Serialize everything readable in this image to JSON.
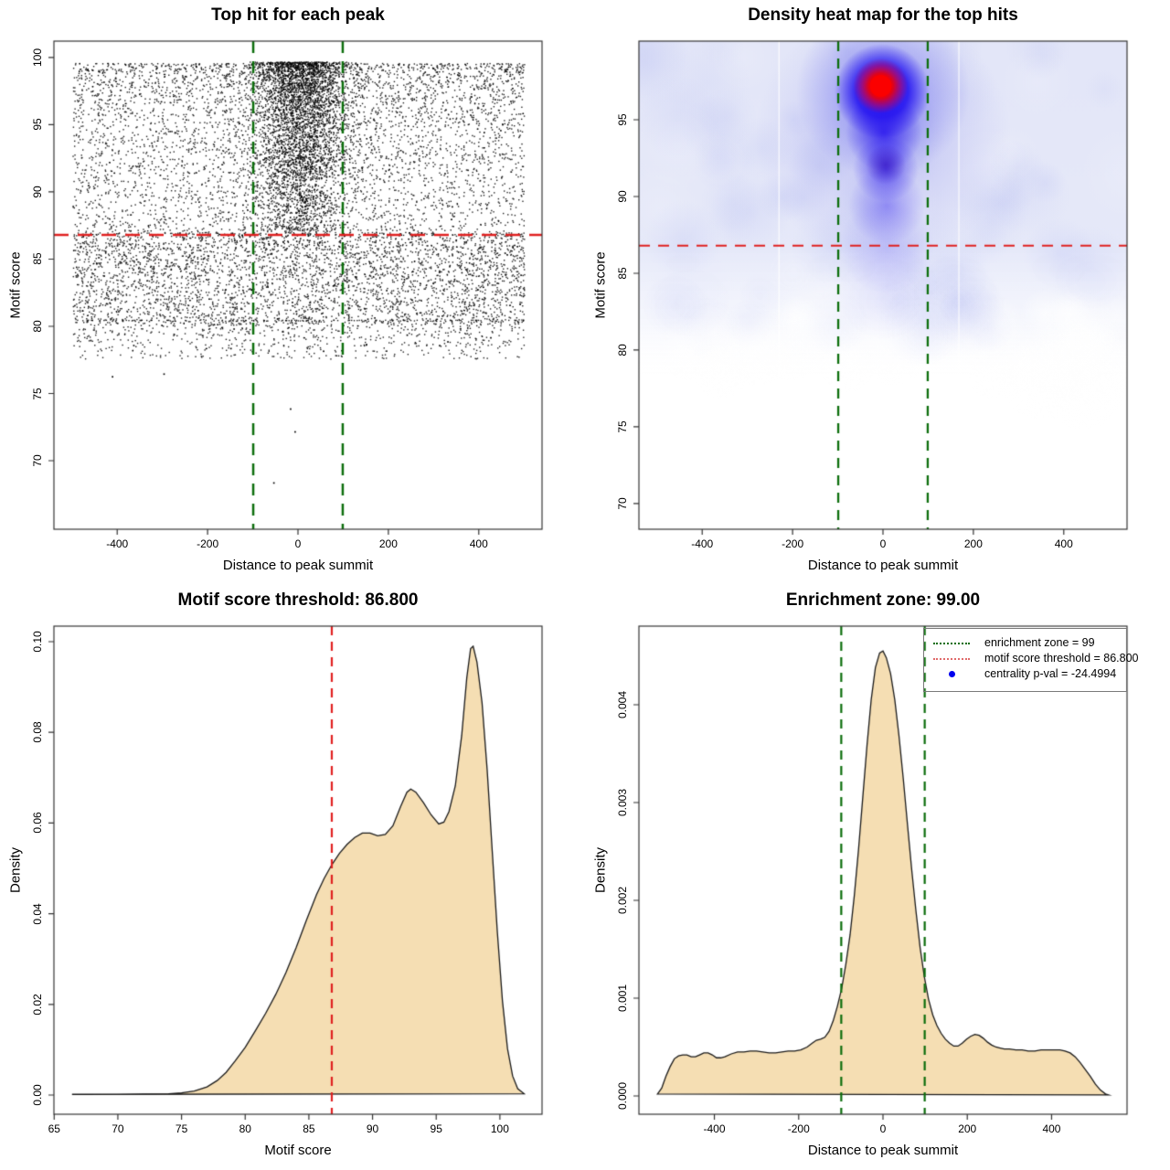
{
  "page": {
    "background": "#ffffff"
  },
  "colors": {
    "box_stroke": "#333333",
    "text": "#000000",
    "red_dashed_line": "#e02020",
    "green_dashed_line": "#0c6e0c",
    "density_fill_wheat": "#f5deb3",
    "density_curve_stroke": "#1a1a1a",
    "scatter_point": "#000000",
    "legend_border": "#7a7a7a",
    "legend_blue_point": "#0000ee",
    "heat_core_red": "#ff0000",
    "heat_strong_blue": "#2212f0",
    "heat_light_blue": "#e3e6f8"
  },
  "panels": [
    {
      "title": "Top hit for each peak",
      "xlabel": "Distance to peak summit",
      "ylabel": "Motif score",
      "x_tick_labels": [
        "-400",
        "-200",
        "0",
        "200",
        "400"
      ],
      "y_tick_labels": [
        "70",
        "75",
        "80",
        "85",
        "90",
        "95",
        "100"
      ]
    },
    {
      "title": "Density heat map for the top hits",
      "xlabel": "Distance to peak summit",
      "ylabel": "Motif score",
      "x_tick_labels": [
        "-400",
        "-200",
        "0",
        "200",
        "400"
      ],
      "y_tick_labels": [
        "70",
        "75",
        "80",
        "85",
        "90",
        "95"
      ]
    },
    {
      "title": "Motif score threshold: 86.800",
      "xlabel": "Motif score",
      "ylabel": "Density",
      "x_tick_labels": [
        "65",
        "70",
        "75",
        "80",
        "85",
        "90",
        "95",
        "100"
      ],
      "y_tick_labels": [
        "0.00",
        "0.02",
        "0.04",
        "0.06",
        "0.08",
        "0.10"
      ]
    },
    {
      "title": "Enrichment zone: 99.00",
      "xlabel": "Distance to peak summit",
      "ylabel": "Density",
      "x_tick_labels": [
        "-400",
        "-200",
        "0",
        "200",
        "400"
      ],
      "y_tick_labels": [
        "0.000",
        "0.001",
        "0.002",
        "0.003",
        "0.004"
      ],
      "legend": {
        "items": [
          {
            "label": "enrichment zone = 99",
            "swatch": "green-dotted-line"
          },
          {
            "label": "motif score threshold = 86.800",
            "swatch": "red-dotted-line"
          },
          {
            "label": "centrality p-val = -24.4994",
            "swatch": "blue-point"
          }
        ]
      }
    }
  ],
  "chart_data": [
    {
      "type": "scatter",
      "title": "Top hit for each peak",
      "xlabel": "Distance to peak summit",
      "ylabel": "Motif score",
      "xlim": [
        -540,
        540
      ],
      "ylim": [
        64.9,
        101.22
      ],
      "x_ticks": [
        -400,
        -200,
        0,
        200,
        400
      ],
      "y_ticks": [
        70,
        75,
        80,
        85,
        90,
        95,
        100
      ],
      "motif_score_threshold": 86.8,
      "enrichment_zone_halfwidth": 99,
      "generator": {
        "seed": 42,
        "n_background": 8800,
        "background_x_range": [
          -499,
          500
        ],
        "background_y_branches": [
          {
            "weight": 0.5,
            "base": 99.6,
            "span": 12.6,
            "power": 1.35
          },
          {
            "weight": 0.4,
            "base": 87.0,
            "span": 6.5,
            "power": 1.15
          },
          {
            "weight": 0.1,
            "base": 80.5,
            "span": 2.9,
            "power": 2.0
          }
        ],
        "n_cluster": 3600,
        "cluster_x_mean": 4,
        "cluster_x_sd": 52,
        "cluster_x_clip": [
          -180,
          190
        ],
        "cluster_y_branches": [
          {
            "weight": 0.54,
            "base": 99.7,
            "span": 4.6,
            "power": 1.5
          },
          {
            "weight": 0.29,
            "base": 95.1,
            "span": 4.1,
            "power": 1.0
          },
          {
            "weight": 0.17,
            "base": 91.0,
            "span": 3.9,
            "power": 1.0
          }
        ]
      },
      "outlier_points": [
        [
          -55,
          68.4
        ],
        [
          -8,
          72.2
        ],
        [
          -18,
          73.9
        ],
        [
          -412,
          76.3
        ],
        [
          -298,
          76.5
        ],
        [
          55,
          78.2
        ],
        [
          330,
          78.9
        ],
        [
          -150,
          78.4
        ],
        [
          150,
          78.7
        ],
        [
          425,
          79.2
        ],
        [
          -460,
          79.0
        ],
        [
          240,
          79.4
        ]
      ]
    },
    {
      "type": "heatmap",
      "title": "Density heat map for the top hits",
      "xlabel": "Distance to peak summit",
      "ylabel": "Motif score",
      "xlim": [
        -540,
        540
      ],
      "ylim": [
        68.33,
        100.12
      ],
      "x_ticks": [
        -400,
        -200,
        0,
        200,
        400
      ],
      "y_ticks": [
        70,
        75,
        80,
        85,
        90,
        95
      ],
      "motif_score_threshold": 86.8,
      "enrichment_zone_halfwidth": 99,
      "colormap": [
        "#ffffff",
        "#e3e6f8",
        "#8890e8",
        "#2212f0",
        "#ff0000"
      ],
      "density_features": {
        "hotspot_xy": [
          -5,
          97.2
        ],
        "main_cluster_x_range": [
          -85,
          85
        ],
        "main_cluster_y_range": [
          89.5,
          99.5
        ],
        "background_band_y_range": [
          79.5,
          100.1
        ],
        "white_streak_x": [
          -230,
          168
        ],
        "noise_seed": 7
      }
    },
    {
      "type": "area",
      "title": "Motif score threshold: 86.800",
      "xlabel": "Motif score",
      "ylabel": "Density",
      "xlim": [
        64.98,
        103.31
      ],
      "ylim": [
        -0.00423,
        0.10343
      ],
      "x_ticks": [
        65,
        70,
        75,
        80,
        85,
        90,
        95,
        100
      ],
      "y_ticks": [
        0.0,
        0.02,
        0.04,
        0.06,
        0.08,
        0.1
      ],
      "threshold_line_x": 86.8,
      "curve": [
        [
          66.4,
          0.00015
        ],
        [
          68,
          0.0002
        ],
        [
          70,
          0.0002
        ],
        [
          72,
          0.00022
        ],
        [
          74,
          0.0003
        ],
        [
          75,
          0.0005
        ],
        [
          76,
          0.0009
        ],
        [
          77,
          0.0018
        ],
        [
          77.8,
          0.0032
        ],
        [
          78.5,
          0.005
        ],
        [
          79.2,
          0.0075
        ],
        [
          80,
          0.0105
        ],
        [
          80.8,
          0.0142
        ],
        [
          81.6,
          0.018
        ],
        [
          82.4,
          0.0222
        ],
        [
          83.2,
          0.027
        ],
        [
          84,
          0.0325
        ],
        [
          84.8,
          0.0385
        ],
        [
          85.6,
          0.0442
        ],
        [
          86.2,
          0.0478
        ],
        [
          86.8,
          0.0508
        ],
        [
          87.4,
          0.0533
        ],
        [
          88,
          0.0553
        ],
        [
          88.6,
          0.0568
        ],
        [
          89.2,
          0.0578
        ],
        [
          89.8,
          0.0578
        ],
        [
          90.4,
          0.0572
        ],
        [
          91,
          0.0575
        ],
        [
          91.6,
          0.0594
        ],
        [
          92.2,
          0.0636
        ],
        [
          92.7,
          0.0668
        ],
        [
          93,
          0.0675
        ],
        [
          93.4,
          0.0668
        ],
        [
          94,
          0.0645
        ],
        [
          94.6,
          0.0618
        ],
        [
          95.2,
          0.0598
        ],
        [
          95.6,
          0.0602
        ],
        [
          96,
          0.0625
        ],
        [
          96.5,
          0.0682
        ],
        [
          97,
          0.0793
        ],
        [
          97.4,
          0.092
        ],
        [
          97.7,
          0.0985
        ],
        [
          97.9,
          0.099
        ],
        [
          98.2,
          0.0955
        ],
        [
          98.6,
          0.0865
        ],
        [
          99,
          0.0718
        ],
        [
          99.4,
          0.0538
        ],
        [
          99.8,
          0.036
        ],
        [
          100.2,
          0.0208
        ],
        [
          100.6,
          0.0102
        ],
        [
          101,
          0.0042
        ],
        [
          101.4,
          0.0014
        ],
        [
          101.9,
          0.0003
        ]
      ]
    },
    {
      "type": "area",
      "title": "Enrichment zone: 99.00",
      "xlabel": "Distance to peak summit",
      "ylabel": "Density",
      "xlim": [
        -579,
        579
      ],
      "ylim": [
        -0.000187,
        0.004804
      ],
      "x_ticks": [
        -400,
        -200,
        0,
        200,
        400
      ],
      "y_ticks": [
        0.0,
        0.001,
        0.002,
        0.003,
        0.004
      ],
      "enrichment_zone_halfwidth": 99,
      "motif_score_threshold": 86.8,
      "centrality_p_val": -24.4994,
      "curve": [
        [
          -535,
          2e-05
        ],
        [
          -525,
          8e-05
        ],
        [
          -515,
          0.0002
        ],
        [
          -505,
          0.0003
        ],
        [
          -495,
          0.00038
        ],
        [
          -485,
          0.00041
        ],
        [
          -475,
          0.00042
        ],
        [
          -465,
          0.00042
        ],
        [
          -455,
          0.0004
        ],
        [
          -445,
          0.0004
        ],
        [
          -435,
          0.00042
        ],
        [
          -425,
          0.00044
        ],
        [
          -415,
          0.00044
        ],
        [
          -405,
          0.00042
        ],
        [
          -395,
          0.00039
        ],
        [
          -385,
          0.00039
        ],
        [
          -375,
          0.0004
        ],
        [
          -360,
          0.00043
        ],
        [
          -345,
          0.00045
        ],
        [
          -330,
          0.00045
        ],
        [
          -315,
          0.00046
        ],
        [
          -300,
          0.00046
        ],
        [
          -285,
          0.00045
        ],
        [
          -270,
          0.00044
        ],
        [
          -255,
          0.00044
        ],
        [
          -240,
          0.00045
        ],
        [
          -225,
          0.00046
        ],
        [
          -210,
          0.00046
        ],
        [
          -195,
          0.00047
        ],
        [
          -180,
          0.0005
        ],
        [
          -168,
          0.00054
        ],
        [
          -158,
          0.00057
        ],
        [
          -148,
          0.00058
        ],
        [
          -138,
          0.0006
        ],
        [
          -128,
          0.00066
        ],
        [
          -118,
          0.00077
        ],
        [
          -108,
          0.00092
        ],
        [
          -98,
          0.0011
        ],
        [
          -88,
          0.00135
        ],
        [
          -78,
          0.00165
        ],
        [
          -68,
          0.00205
        ],
        [
          -58,
          0.00252
        ],
        [
          -48,
          0.00305
        ],
        [
          -38,
          0.00358
        ],
        [
          -28,
          0.00405
        ],
        [
          -18,
          0.00438
        ],
        [
          -8,
          0.00453
        ],
        [
          0,
          0.00455
        ],
        [
          8,
          0.00448
        ],
        [
          18,
          0.00432
        ],
        [
          28,
          0.00405
        ],
        [
          38,
          0.00368
        ],
        [
          48,
          0.00325
        ],
        [
          58,
          0.00278
        ],
        [
          68,
          0.00232
        ],
        [
          78,
          0.0019
        ],
        [
          88,
          0.00152
        ],
        [
          98,
          0.00122
        ],
        [
          108,
          0.00099
        ],
        [
          118,
          0.00083
        ],
        [
          128,
          0.00072
        ],
        [
          138,
          0.00064
        ],
        [
          148,
          0.00058
        ],
        [
          158,
          0.00054
        ],
        [
          168,
          0.00051
        ],
        [
          178,
          0.00051
        ],
        [
          188,
          0.00054
        ],
        [
          198,
          0.00058
        ],
        [
          208,
          0.00061
        ],
        [
          218,
          0.00063
        ],
        [
          228,
          0.00062
        ],
        [
          238,
          0.00059
        ],
        [
          248,
          0.00055
        ],
        [
          258,
          0.00052
        ],
        [
          268,
          0.0005
        ],
        [
          278,
          0.00049
        ],
        [
          288,
          0.00048
        ],
        [
          300,
          0.00048
        ],
        [
          315,
          0.00047
        ],
        [
          330,
          0.00047
        ],
        [
          345,
          0.00046
        ],
        [
          360,
          0.00046
        ],
        [
          375,
          0.00047
        ],
        [
          390,
          0.00047
        ],
        [
          405,
          0.00047
        ],
        [
          420,
          0.00047
        ],
        [
          432,
          0.00046
        ],
        [
          444,
          0.00044
        ],
        [
          456,
          0.0004
        ],
        [
          468,
          0.00034
        ],
        [
          480,
          0.00027
        ],
        [
          492,
          0.0002
        ],
        [
          504,
          0.00012
        ],
        [
          516,
          6e-05
        ],
        [
          528,
          2e-05
        ],
        [
          535,
          1e-05
        ]
      ]
    }
  ]
}
